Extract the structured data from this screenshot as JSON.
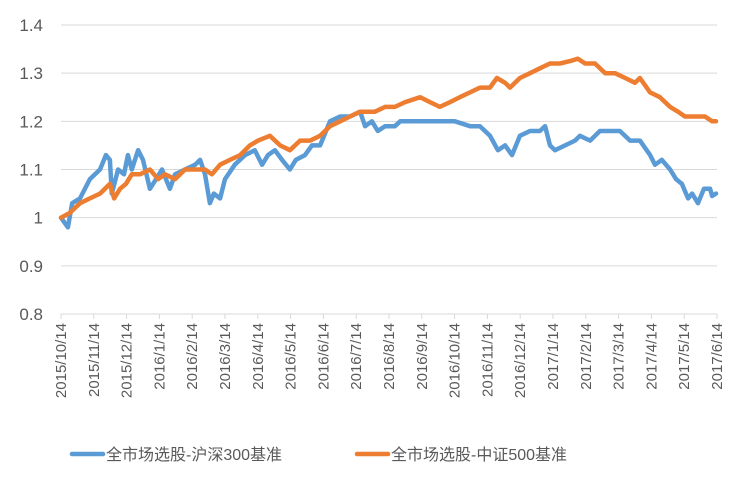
{
  "chart_data": {
    "type": "line",
    "title": "",
    "xlabel": "",
    "ylabel": "",
    "ylim": [
      0.8,
      1.4
    ],
    "yticks": [
      "0.8",
      "0.9",
      "1",
      "1.1",
      "1.2",
      "1.3",
      "1.4"
    ],
    "ytick_values": [
      0.8,
      0.9,
      1.0,
      1.1,
      1.2,
      1.3,
      1.4
    ],
    "x_unit": "months since 2015/10/14",
    "xlim": [
      0,
      20
    ],
    "categories": [
      "2015/10/14",
      "2015/11/14",
      "2015/12/14",
      "2016/1/14",
      "2016/2/14",
      "2016/3/14",
      "2016/4/14",
      "2016/5/14",
      "2016/6/14",
      "2016/7/14",
      "2016/8/14",
      "2016/9/14",
      "2016/10/14",
      "2016/11/14",
      "2016/12/14",
      "2017/1/14",
      "2017/2/14",
      "2017/3/14",
      "2017/4/14",
      "2017/5/14",
      "2017/6/14"
    ],
    "grid": true,
    "legend_position": "bottom",
    "series": [
      {
        "name": "全市场选股-沪深300基准",
        "color": "#5B9BD5",
        "x": [
          0,
          0.21,
          0.34,
          0.58,
          0.88,
          1.19,
          1.37,
          1.49,
          1.55,
          1.74,
          1.92,
          2.04,
          2.16,
          2.35,
          2.5,
          2.71,
          2.9,
          3.08,
          3.32,
          3.48,
          3.78,
          4.09,
          4.24,
          4.39,
          4.54,
          4.66,
          4.85,
          5.0,
          5.3,
          5.61,
          5.91,
          6.13,
          6.31,
          6.52,
          6.74,
          6.98,
          7.16,
          7.44,
          7.65,
          7.9,
          8.2,
          8.51,
          8.81,
          9.12,
          9.27,
          9.48,
          9.66,
          9.88,
          10.18,
          10.34,
          10.64,
          10.95,
          11.55,
          12.01,
          12.47,
          12.77,
          13.08,
          13.32,
          13.54,
          13.75,
          13.99,
          14.3,
          14.6,
          14.76,
          14.91,
          15.06,
          15.37,
          15.67,
          15.82,
          16.13,
          16.28,
          16.43,
          16.74,
          17.04,
          17.35,
          17.65,
          17.96,
          18.11,
          18.32,
          18.57,
          18.75,
          18.93,
          19.12,
          19.24,
          19.42,
          19.6,
          19.79,
          19.85,
          19.97
        ],
        "values": [
          1.0,
          0.98,
          1.03,
          1.04,
          1.08,
          1.1,
          1.13,
          1.12,
          1.05,
          1.1,
          1.09,
          1.13,
          1.1,
          1.14,
          1.12,
          1.06,
          1.08,
          1.1,
          1.06,
          1.09,
          1.1,
          1.11,
          1.12,
          1.09,
          1.03,
          1.05,
          1.04,
          1.08,
          1.11,
          1.13,
          1.14,
          1.11,
          1.13,
          1.14,
          1.12,
          1.1,
          1.12,
          1.13,
          1.15,
          1.15,
          1.2,
          1.21,
          1.21,
          1.22,
          1.19,
          1.2,
          1.18,
          1.19,
          1.19,
          1.2,
          1.2,
          1.2,
          1.2,
          1.2,
          1.19,
          1.19,
          1.17,
          1.14,
          1.15,
          1.13,
          1.17,
          1.18,
          1.18,
          1.19,
          1.15,
          1.14,
          1.15,
          1.16,
          1.17,
          1.16,
          1.17,
          1.18,
          1.18,
          1.18,
          1.16,
          1.16,
          1.13,
          1.11,
          1.12,
          1.1,
          1.08,
          1.07,
          1.04,
          1.05,
          1.03,
          1.06,
          1.06,
          1.045,
          1.05
        ]
      },
      {
        "name": "全市场选股-中证500基准",
        "color": "#ED7D31",
        "x": [
          0,
          0.27,
          0.58,
          0.88,
          1.19,
          1.49,
          1.62,
          1.8,
          1.98,
          2.16,
          2.41,
          2.71,
          2.96,
          3.17,
          3.48,
          3.78,
          4.09,
          4.39,
          4.6,
          4.85,
          5.15,
          5.46,
          5.76,
          6.01,
          6.37,
          6.68,
          6.98,
          7.29,
          7.59,
          7.9,
          8.2,
          8.51,
          8.81,
          9.12,
          9.57,
          9.88,
          10.18,
          10.49,
          10.95,
          11.25,
          11.55,
          11.86,
          12.16,
          12.47,
          12.77,
          13.08,
          13.29,
          13.54,
          13.69,
          13.99,
          14.3,
          14.6,
          14.91,
          15.21,
          15.52,
          15.76,
          15.98,
          16.28,
          16.59,
          16.89,
          17.2,
          17.5,
          17.65,
          17.96,
          18.26,
          18.57,
          18.81,
          19.02,
          19.33,
          19.63,
          19.85,
          19.97
        ],
        "values": [
          1.0,
          1.01,
          1.03,
          1.04,
          1.05,
          1.07,
          1.04,
          1.06,
          1.07,
          1.09,
          1.09,
          1.1,
          1.08,
          1.09,
          1.08,
          1.1,
          1.1,
          1.1,
          1.09,
          1.11,
          1.12,
          1.13,
          1.15,
          1.16,
          1.17,
          1.15,
          1.14,
          1.16,
          1.16,
          1.17,
          1.19,
          1.2,
          1.21,
          1.22,
          1.22,
          1.23,
          1.23,
          1.24,
          1.25,
          1.24,
          1.23,
          1.24,
          1.25,
          1.26,
          1.27,
          1.27,
          1.29,
          1.28,
          1.27,
          1.29,
          1.3,
          1.31,
          1.32,
          1.32,
          1.325,
          1.33,
          1.32,
          1.32,
          1.3,
          1.3,
          1.29,
          1.28,
          1.29,
          1.26,
          1.25,
          1.23,
          1.22,
          1.21,
          1.21,
          1.21,
          1.2,
          1.2
        ]
      }
    ]
  }
}
